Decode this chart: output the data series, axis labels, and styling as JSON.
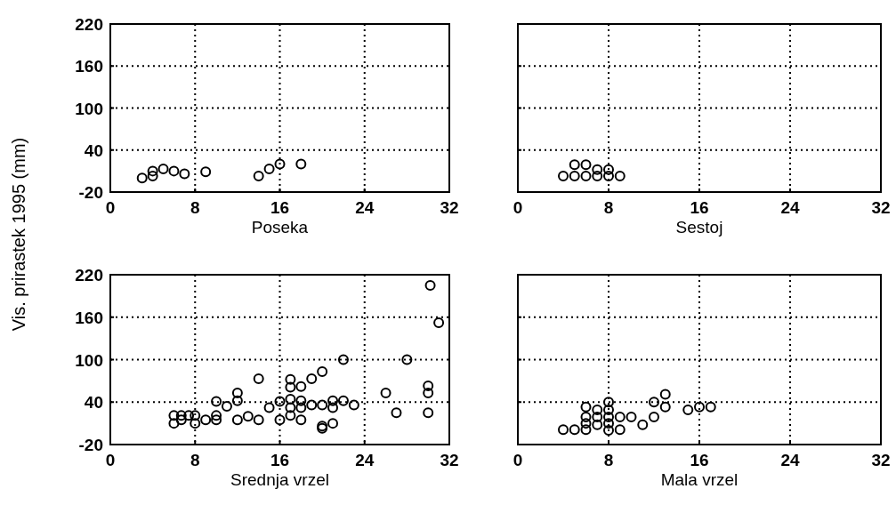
{
  "chart_data": [
    {
      "type": "scatter",
      "ylabel": "Vis. prirastek 1995 (mm)",
      "xlabel": "Poseka",
      "xlim": [
        0,
        32
      ],
      "xticks": [
        0,
        8,
        16,
        24,
        32
      ],
      "ylim": [
        -20,
        220
      ],
      "yticks": [
        -20,
        40,
        100,
        160,
        220
      ],
      "grid": true,
      "marker": "circle",
      "series": [
        {
          "color": "#000000",
          "x": [
            3,
            4,
            4,
            5,
            6,
            7,
            9,
            14,
            15,
            16,
            18
          ],
          "values": [
            0,
            3,
            10,
            13,
            10,
            6,
            9,
            3,
            13,
            20,
            20
          ]
        }
      ]
    },
    {
      "type": "scatter",
      "xlabel": "Sestoj",
      "xlim": [
        0,
        32
      ],
      "xticks": [
        0,
        8,
        16,
        24,
        32
      ],
      "ylim": [
        -20,
        220
      ],
      "yticks": [
        -20,
        40,
        100,
        160,
        220
      ],
      "grid": true,
      "marker": "circle",
      "tick_labels": "x",
      "series": [
        {
          "color": "#000000",
          "x": [
            4,
            5,
            6,
            7,
            8,
            9,
            5,
            6,
            7,
            8
          ],
          "values": [
            3,
            3,
            3,
            3,
            3,
            3,
            19,
            19,
            12,
            12
          ]
        }
      ]
    },
    {
      "type": "scatter",
      "xlabel": "Srednja vrzel",
      "xlim": [
        0,
        32
      ],
      "xticks": [
        0,
        8,
        16,
        24,
        32
      ],
      "ylim": [
        -20,
        220
      ],
      "yticks": [
        -20,
        40,
        100,
        160,
        220
      ],
      "grid": true,
      "marker": "circle",
      "series": [
        {
          "color": "#000000",
          "x": [
            6,
            6,
            6.7,
            6.7,
            7.4,
            8,
            8,
            9,
            10,
            10,
            10,
            11,
            12,
            12,
            12,
            13,
            14,
            14,
            15,
            16,
            16,
            17,
            17,
            17,
            17,
            17,
            18,
            18,
            18,
            18,
            19,
            19,
            20,
            20,
            20,
            20,
            21,
            21,
            21,
            22,
            22,
            23,
            26,
            27,
            28,
            30,
            30,
            30,
            30.2,
            31
          ],
          "values": [
            21,
            10,
            21,
            15,
            21,
            21,
            10,
            15,
            21,
            15,
            41,
            34,
            53,
            42,
            15,
            20,
            15,
            73,
            32,
            41,
            15,
            72,
            61,
            44,
            32,
            21,
            62,
            42,
            32,
            15,
            73,
            36,
            83,
            36,
            6,
            3,
            42,
            32,
            10,
            100,
            42,
            36,
            53,
            25,
            100,
            63,
            53,
            25,
            205,
            152
          ]
        }
      ]
    },
    {
      "type": "scatter",
      "xlabel": "Mala vrzel",
      "xlim": [
        0,
        32
      ],
      "xticks": [
        0,
        8,
        16,
        24,
        32
      ],
      "ylim": [
        -20,
        220
      ],
      "yticks": [
        -20,
        40,
        100,
        160,
        220
      ],
      "grid": true,
      "marker": "circle",
      "tick_labels": "x",
      "series": [
        {
          "color": "#000000",
          "x": [
            4,
            5,
            6,
            6,
            6,
            6,
            7,
            7,
            7,
            8,
            8,
            8,
            8,
            8,
            9,
            9,
            10,
            11,
            12,
            12,
            13,
            13,
            15,
            16,
            17
          ],
          "values": [
            1,
            1,
            1,
            33,
            19,
            10,
            29,
            19,
            8,
            40,
            29,
            19,
            10,
            0,
            19,
            1,
            19,
            8,
            40,
            19,
            51,
            33,
            29,
            33,
            33
          ]
        }
      ]
    }
  ]
}
